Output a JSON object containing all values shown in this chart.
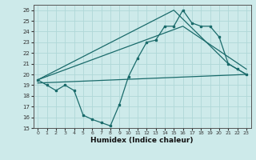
{
  "xlabel": "Humidex (Indice chaleur)",
  "xlim": [
    -0.5,
    23.5
  ],
  "ylim": [
    15,
    26.5
  ],
  "yticks": [
    15,
    16,
    17,
    18,
    19,
    20,
    21,
    22,
    23,
    24,
    25,
    26
  ],
  "xticks": [
    0,
    1,
    2,
    3,
    4,
    5,
    6,
    7,
    8,
    9,
    10,
    11,
    12,
    13,
    14,
    15,
    16,
    17,
    18,
    19,
    20,
    21,
    22,
    23
  ],
  "background_color": "#cdeaea",
  "grid_color": "#b0d8d8",
  "line_color": "#1a6b6b",
  "lines": [
    {
      "x": [
        0,
        1,
        2,
        3,
        4,
        5,
        6,
        7,
        8,
        9,
        10,
        11,
        12,
        13,
        14,
        15,
        16,
        17,
        18,
        19,
        20,
        21,
        22,
        23
      ],
      "y": [
        19.5,
        19.0,
        18.5,
        19.0,
        18.5,
        16.2,
        15.8,
        15.5,
        15.2,
        17.2,
        19.8,
        21.5,
        23.0,
        23.2,
        24.5,
        24.5,
        26.0,
        24.8,
        24.5,
        24.5,
        23.5,
        21.0,
        20.5,
        20.0
      ]
    },
    {
      "x": [
        0,
        15,
        21,
        23
      ],
      "y": [
        19.5,
        26.0,
        21.0,
        20.0
      ]
    },
    {
      "x": [
        0,
        16,
        23
      ],
      "y": [
        19.5,
        24.5,
        20.5
      ]
    },
    {
      "x": [
        0,
        23
      ],
      "y": [
        19.2,
        20.0
      ]
    }
  ]
}
